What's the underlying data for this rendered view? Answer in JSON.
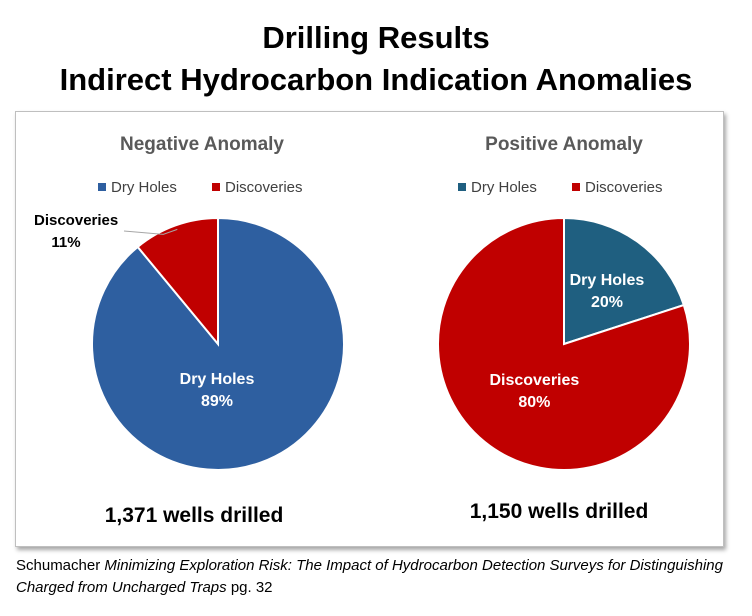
{
  "header": {
    "title_line1": "Drilling Results",
    "title_line2": "Indirect Hydrocarbon Indication Anomalies"
  },
  "chart_data": [
    {
      "type": "pie",
      "title": "Negative Anomaly",
      "legend": [
        "Dry Holes",
        "Discoveries"
      ],
      "legend_position": "top",
      "slices": [
        {
          "label": "Dry Holes",
          "value": 89,
          "pct_label": "89%",
          "color": "#2e5fa0"
        },
        {
          "label": "Discoveries",
          "value": 11,
          "pct_label": "11%",
          "color": "#c00000"
        }
      ],
      "footer": "1,371 wells drilled"
    },
    {
      "type": "pie",
      "title": "Positive Anomaly",
      "legend": [
        "Dry Holes",
        "Discoveries"
      ],
      "legend_position": "top",
      "slices": [
        {
          "label": "Dry Holes",
          "value": 20,
          "pct_label": "20%",
          "color": "#1f5f80"
        },
        {
          "label": "Discoveries",
          "value": 80,
          "pct_label": "80%",
          "color": "#c00000"
        }
      ],
      "footer": "1,150 wells drilled"
    }
  ],
  "citation": {
    "author": "Schumacher ",
    "title": "Minimizing Exploration Risk:  The Impact of Hydrocarbon Detection Surveys for Distinguishing Charged from Uncharged Traps",
    "page": " pg. 32"
  },
  "colors": {
    "chart_title": "#595959",
    "legend_text": "#404040",
    "slice_label": "#ffffff",
    "outside_label": "#000000"
  }
}
